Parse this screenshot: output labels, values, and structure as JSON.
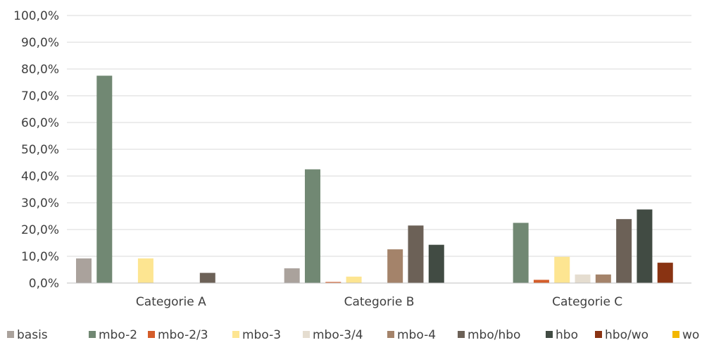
{
  "chart_data": {
    "type": "bar",
    "title": "",
    "xlabel": "",
    "ylabel": "",
    "ylim": [
      0,
      100
    ],
    "y_ticks": [
      "0,0%",
      "10,0%",
      "20,0%",
      "30,0%",
      "40,0%",
      "50,0%",
      "60,0%",
      "70,0%",
      "80,0%",
      "90,0%",
      "100,0%"
    ],
    "y_tick_values": [
      0,
      10,
      20,
      30,
      40,
      50,
      60,
      70,
      80,
      90,
      100
    ],
    "grid": true,
    "legend_position": "bottom",
    "categories": [
      "Categorie A",
      "Categorie B",
      "Categorie C"
    ],
    "series": [
      {
        "name": "basis",
        "color": "#aaa29c",
        "values": [
          9.2,
          5.5,
          0
        ]
      },
      {
        "name": "mbo-2",
        "color": "#718873",
        "values": [
          77.5,
          42.5,
          22.5
        ]
      },
      {
        "name": "mbo-2/3",
        "color": "#d45d2a",
        "values": [
          0,
          0.4,
          1.2
        ]
      },
      {
        "name": "mbo-3",
        "color": "#fde591",
        "values": [
          9.2,
          2.4,
          9.8
        ]
      },
      {
        "name": "mbo-3/4",
        "color": "#e5ddd0",
        "values": [
          0,
          0,
          3.2
        ]
      },
      {
        "name": "mbo-4",
        "color": "#a4836a",
        "values": [
          0,
          12.6,
          3.2
        ]
      },
      {
        "name": "mbo/hbo",
        "color": "#6c6157",
        "values": [
          3.8,
          21.5,
          23.9
        ]
      },
      {
        "name": "hbo",
        "color": "#414b43",
        "values": [
          0,
          14.3,
          27.5
        ]
      },
      {
        "name": "hbo/wo",
        "color": "#893312",
        "values": [
          0,
          0,
          7.6
        ]
      },
      {
        "name": "wo",
        "color": "#f3b700",
        "values": [
          0,
          0,
          0
        ]
      }
    ]
  }
}
